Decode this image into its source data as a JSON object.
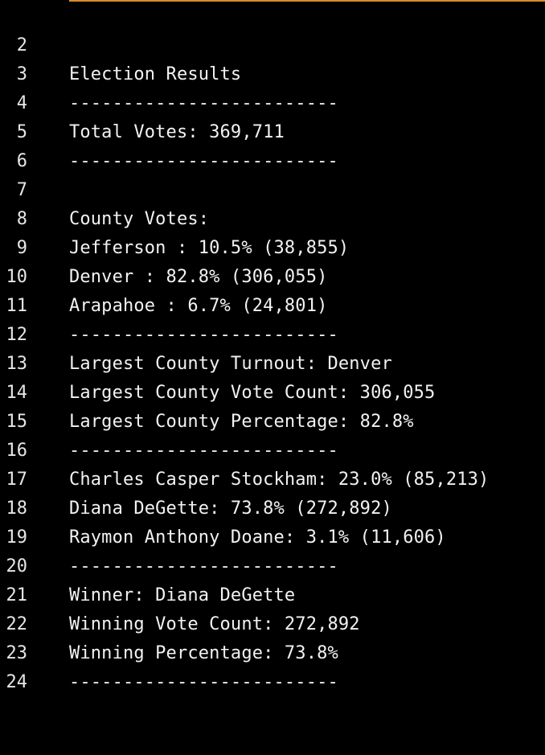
{
  "editor": {
    "accent_color": "#d98b2b",
    "background_color": "#000000",
    "text_color": "#f2f2f2",
    "lines": [
      {
        "number": "2",
        "text": "Election Results"
      },
      {
        "number": "3",
        "text": "-------------------------"
      },
      {
        "number": "4",
        "text": "Total Votes: 369,711"
      },
      {
        "number": "5",
        "text": "-------------------------"
      },
      {
        "number": "6",
        "text": ""
      },
      {
        "number": "7",
        "text": "County Votes:"
      },
      {
        "number": "8",
        "text": "Jefferson : 10.5% (38,855)"
      },
      {
        "number": "9",
        "text": "Denver : 82.8% (306,055)"
      },
      {
        "number": "10",
        "text": "Arapahoe : 6.7% (24,801)"
      },
      {
        "number": "11",
        "text": "-------------------------"
      },
      {
        "number": "12",
        "text": "Largest County Turnout: Denver"
      },
      {
        "number": "13",
        "text": "Largest County Vote Count: 306,055"
      },
      {
        "number": "14",
        "text": "Largest County Percentage: 82.8%"
      },
      {
        "number": "15",
        "text": "-------------------------"
      },
      {
        "number": "16",
        "text": "Charles Casper Stockham: 23.0% (85,213)"
      },
      {
        "number": "17",
        "text": "Diana DeGette: 73.8% (272,892)"
      },
      {
        "number": "18",
        "text": "Raymon Anthony Doane: 3.1% (11,606)"
      },
      {
        "number": "19",
        "text": "-------------------------"
      },
      {
        "number": "20",
        "text": "Winner: Diana DeGette"
      },
      {
        "number": "21",
        "text": "Winning Vote Count: 272,892"
      },
      {
        "number": "22",
        "text": "Winning Percentage: 73.8%"
      },
      {
        "number": "23",
        "text": "-------------------------"
      },
      {
        "number": "24",
        "text": ""
      }
    ]
  }
}
